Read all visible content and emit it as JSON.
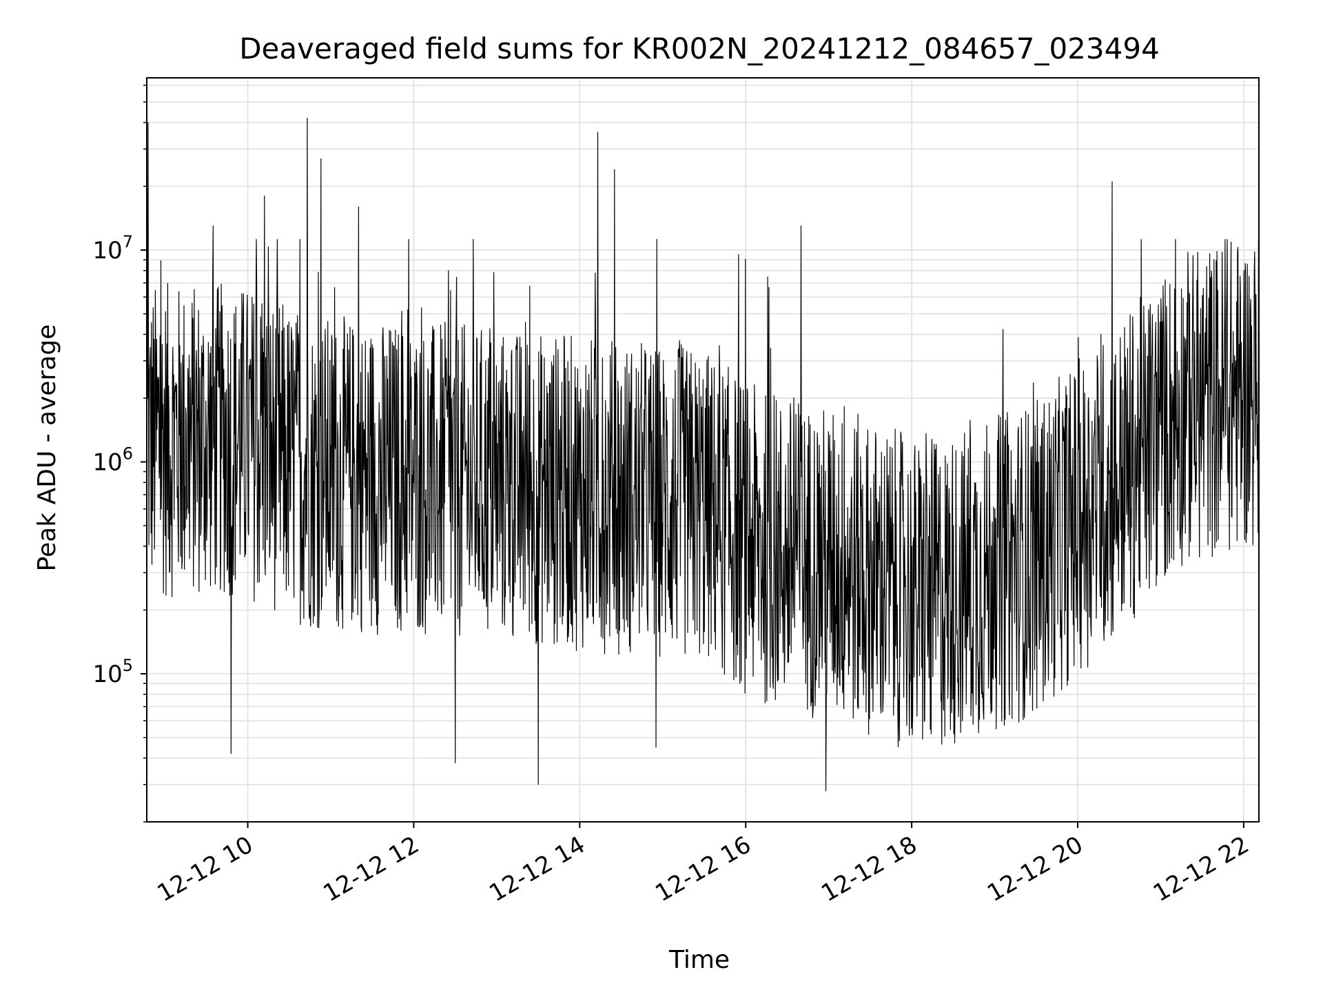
{
  "chart_data": {
    "type": "line",
    "title": "Deaveraged field sums for KR002N_20241212_084657_023494",
    "xlabel": "Time",
    "ylabel": "Peak ADU - average",
    "y_scale": "log",
    "ylim": [
      20000,
      65000000
    ],
    "xlim": [
      "2024-12-12 08:47",
      "2024-12-12 22:11"
    ],
    "grid": true,
    "legend": "none",
    "line_color": "#000000",
    "grid_color": "#e5e5e5",
    "x_ticks": [
      {
        "value": "2024-12-12 10:00",
        "label": "12-12 10"
      },
      {
        "value": "2024-12-12 12:00",
        "label": "12-12 12"
      },
      {
        "value": "2024-12-12 14:00",
        "label": "12-12 14"
      },
      {
        "value": "2024-12-12 16:00",
        "label": "12-12 16"
      },
      {
        "value": "2024-12-12 18:00",
        "label": "12-12 18"
      },
      {
        "value": "2024-12-12 20:00",
        "label": "12-12 20"
      },
      {
        "value": "2024-12-12 22:00",
        "label": "12-12 22"
      }
    ],
    "y_ticks": [
      {
        "value": 100000,
        "base": "10",
        "exp": "5"
      },
      {
        "value": 1000000,
        "base": "10",
        "exp": "6"
      },
      {
        "value": 10000000,
        "base": "10",
        "exp": "7"
      }
    ],
    "series": [
      {
        "time": [
          "2024-12-12 08:47",
          "2024-12-12 08:48",
          "2024-12-12 09:15",
          "2024-12-12 09:30",
          "2024-12-12 09:35",
          "2024-12-12 09:48",
          "2024-12-12 10:00",
          "2024-12-12 10:12",
          "2024-12-12 10:30",
          "2024-12-12 10:43",
          "2024-12-12 10:53",
          "2024-12-12 11:00",
          "2024-12-12 11:15",
          "2024-12-12 11:20",
          "2024-12-12 11:45",
          "2024-12-12 12:00",
          "2024-12-12 12:25",
          "2024-12-12 12:30",
          "2024-12-12 12:45",
          "2024-12-12 13:00",
          "2024-12-12 13:20",
          "2024-12-12 13:30",
          "2024-12-12 13:55",
          "2024-12-12 14:00",
          "2024-12-12 14:13",
          "2024-12-12 14:20",
          "2024-12-12 14:25",
          "2024-12-12 14:38",
          "2024-12-12 14:55",
          "2024-12-12 15:00",
          "2024-12-12 15:20",
          "2024-12-12 15:45",
          "2024-12-12 16:00",
          "2024-12-12 16:30",
          "2024-12-12 16:40",
          "2024-12-12 16:58",
          "2024-12-12 17:00",
          "2024-12-12 17:30",
          "2024-12-12 18:00",
          "2024-12-12 18:15",
          "2024-12-12 18:30",
          "2024-12-12 19:00",
          "2024-12-12 19:10",
          "2024-12-12 19:30",
          "2024-12-12 20:00",
          "2024-12-12 20:25",
          "2024-12-12 20:30",
          "2024-12-12 21:00",
          "2024-12-12 21:30",
          "2024-12-12 22:00",
          "2024-12-12 22:10"
        ],
        "value": [
          1500000,
          40000000,
          1800000,
          1400000,
          13000000,
          42000,
          1000000,
          18000000,
          900000,
          42000000,
          27000000,
          1200000,
          850000,
          16000000,
          1300000,
          900000,
          8000000,
          38000,
          800000,
          600000,
          1200000,
          30000,
          1100000,
          500000,
          36000000,
          500000,
          24000000,
          700000,
          45000,
          400000,
          350000,
          300000,
          300000,
          250000,
          13000000,
          28000,
          250000,
          350000,
          400000,
          550000,
          500000,
          600000,
          1200000,
          1000000,
          700000,
          21000000,
          900000,
          1500000,
          2500000,
          3000000,
          1500000
        ]
      }
    ]
  }
}
